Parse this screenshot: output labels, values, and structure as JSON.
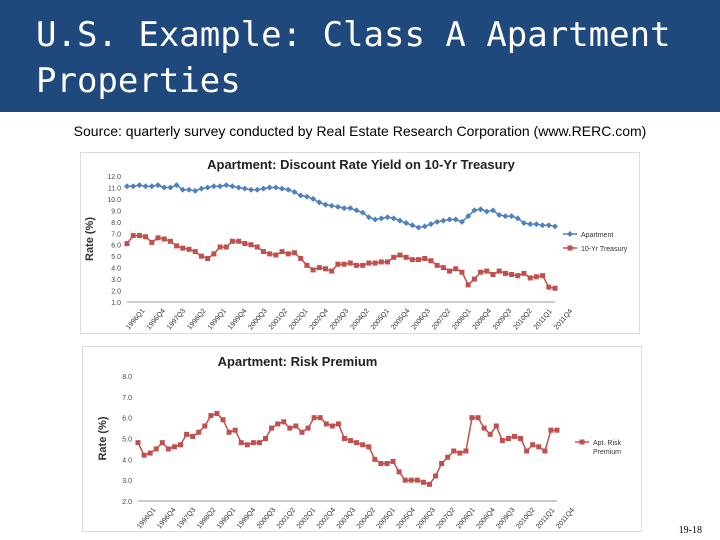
{
  "slide": {
    "title": "U.S. Example: Class A Apartment Properties",
    "source": "Source: quarterly survey conducted by Real Estate Research Corporation (www.RERC.com)",
    "page_number": "19-18"
  },
  "colors": {
    "header": "#1f497d",
    "apartment": "#4f81bd",
    "treasury": "#c0504d"
  },
  "chart_data": [
    {
      "type": "line",
      "title": "Apartment: Discount Rate Yield on 10-Yr Treasury",
      "ylabel": "Rate (%)",
      "ylim": [
        1.0,
        12.0
      ],
      "yticks": [
        "1.0",
        "2.0",
        "3.0",
        "4.0",
        "5.0",
        "6.0",
        "7.0",
        "8.0",
        "9.0",
        "10.0",
        "11.0",
        "12.0"
      ],
      "xtick_labels": [
        "1996Q1",
        "1996Q4",
        "1997Q3",
        "1998Q2",
        "1999Q1",
        "1999Q4",
        "2000Q3",
        "2001Q2",
        "2002Q1",
        "2002Q4",
        "2003Q3",
        "2004Q2",
        "2005Q1",
        "2005Q4",
        "2006Q3",
        "2007Q2",
        "2008Q1",
        "2008Q4",
        "2009Q3",
        "2010Q2",
        "2011Q1",
        "2011Q4"
      ],
      "legend_position": "right",
      "series": [
        {
          "name": "Apartment",
          "values": [
            11.1,
            11.1,
            11.2,
            11.1,
            11.1,
            11.2,
            11.0,
            11.0,
            11.2,
            10.8,
            10.8,
            10.7,
            10.9,
            11.0,
            11.1,
            11.1,
            11.2,
            11.1,
            11.0,
            10.9,
            10.8,
            10.8,
            10.9,
            11.0,
            11.0,
            10.9,
            10.8,
            10.6,
            10.3,
            10.2,
            10.0,
            9.7,
            9.5,
            9.4,
            9.3,
            9.2,
            9.2,
            9.0,
            8.8,
            8.4,
            8.2,
            8.3,
            8.4,
            8.3,
            8.1,
            7.9,
            7.7,
            7.5,
            7.6,
            7.8,
            8.0,
            8.1,
            8.2,
            8.2,
            8.0,
            8.5,
            9.0,
            9.1,
            8.9,
            9.0,
            8.6,
            8.5,
            8.5,
            8.3,
            7.9,
            7.8,
            7.8,
            7.7,
            7.7,
            7.6
          ]
        },
        {
          "name": "10-Yr Treasury",
          "values": [
            6.1,
            6.8,
            6.8,
            6.7,
            6.2,
            6.6,
            6.5,
            6.3,
            5.9,
            5.7,
            5.6,
            5.4,
            5.0,
            4.8,
            5.2,
            5.8,
            5.8,
            6.3,
            6.3,
            6.1,
            6.0,
            5.8,
            5.4,
            5.2,
            5.1,
            5.4,
            5.2,
            5.3,
            4.8,
            4.2,
            3.8,
            4.0,
            3.9,
            3.7,
            4.3,
            4.3,
            4.4,
            4.2,
            4.2,
            4.4,
            4.4,
            4.5,
            4.5,
            4.9,
            5.1,
            4.9,
            4.7,
            4.7,
            4.8,
            4.6,
            4.2,
            4.0,
            3.7,
            3.9,
            3.6,
            2.5,
            3.0,
            3.6,
            3.7,
            3.4,
            3.7,
            3.5,
            3.4,
            3.3,
            3.5,
            3.1,
            3.2,
            3.3,
            2.3,
            2.2
          ]
        }
      ]
    },
    {
      "type": "line",
      "title": "Apartment: Risk Premium",
      "ylabel": "Rate (%)",
      "ylim": [
        2.0,
        8.0
      ],
      "yticks": [
        "2.0",
        "3.0",
        "4.0",
        "5.0",
        "6.0",
        "7.0",
        "8.0"
      ],
      "xtick_labels": [
        "1996Q1",
        "1996Q4",
        "1997Q3",
        "1998Q2",
        "1999Q1",
        "1999Q4",
        "2000Q3",
        "2001Q2",
        "2002Q1",
        "2002Q4",
        "2003Q3",
        "2004Q2",
        "2005Q1",
        "2005Q4",
        "2006Q3",
        "2007Q2",
        "2008Q1",
        "2008Q4",
        "2009Q3",
        "2010Q2",
        "2011Q1",
        "2011Q4"
      ],
      "legend_position": "right",
      "series": [
        {
          "name": "Apt. Risk Premium",
          "values": [
            4.8,
            4.2,
            4.3,
            4.5,
            4.8,
            4.5,
            4.6,
            4.7,
            5.2,
            5.1,
            5.3,
            5.6,
            6.1,
            6.2,
            5.9,
            5.3,
            5.4,
            4.8,
            4.7,
            4.8,
            4.8,
            5.0,
            5.5,
            5.7,
            5.8,
            5.5,
            5.6,
            5.3,
            5.5,
            6.0,
            6.0,
            5.7,
            5.6,
            5.7,
            5.0,
            4.9,
            4.8,
            4.7,
            4.6,
            4.0,
            3.8,
            3.8,
            3.9,
            3.4,
            3.0,
            3.0,
            3.0,
            2.9,
            2.8,
            3.2,
            3.8,
            4.1,
            4.4,
            4.3,
            4.4,
            6.0,
            6.0,
            5.5,
            5.2,
            5.6,
            4.9,
            5.0,
            5.1,
            5.0,
            4.4,
            4.7,
            4.6,
            4.4,
            5.4,
            5.4
          ]
        }
      ]
    }
  ]
}
